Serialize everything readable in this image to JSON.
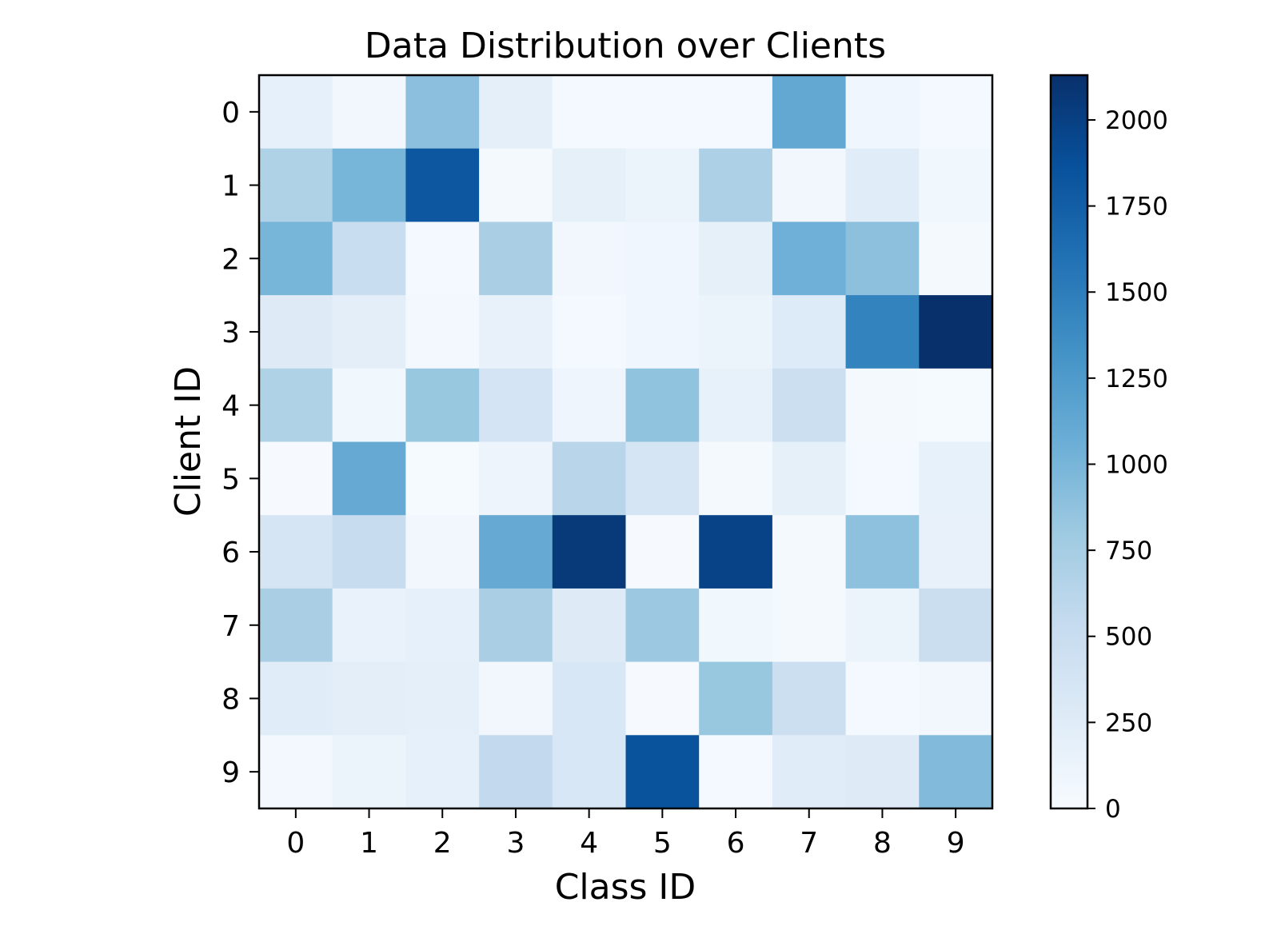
{
  "chart_data": {
    "type": "heatmap",
    "title": "Data Distribution over Clients",
    "xlabel": "Class ID",
    "ylabel": "Client ID",
    "x_categories": [
      "0",
      "1",
      "2",
      "3",
      "4",
      "5",
      "6",
      "7",
      "8",
      "9"
    ],
    "y_categories": [
      "0",
      "1",
      "2",
      "3",
      "4",
      "5",
      "6",
      "7",
      "8",
      "9"
    ],
    "values": [
      [
        180,
        60,
        900,
        200,
        40,
        40,
        40,
        1120,
        80,
        40
      ],
      [
        680,
        1000,
        1810,
        30,
        190,
        120,
        700,
        60,
        240,
        70
      ],
      [
        1000,
        500,
        40,
        720,
        60,
        80,
        190,
        1050,
        890,
        30
      ],
      [
        270,
        210,
        50,
        160,
        40,
        80,
        130,
        280,
        1450,
        2130
      ],
      [
        680,
        70,
        830,
        380,
        100,
        870,
        170,
        470,
        30,
        20
      ],
      [
        10,
        1100,
        20,
        110,
        620,
        360,
        30,
        190,
        40,
        170
      ],
      [
        360,
        510,
        60,
        1100,
        2050,
        10,
        1980,
        30,
        880,
        160
      ],
      [
        720,
        150,
        180,
        720,
        270,
        810,
        70,
        30,
        120,
        490
      ],
      [
        250,
        210,
        200,
        60,
        330,
        10,
        830,
        470,
        40,
        60
      ],
      [
        50,
        120,
        180,
        550,
        330,
        1850,
        40,
        250,
        270,
        950
      ]
    ],
    "colorbar": {
      "min": 0,
      "max": 2130,
      "ticks": [
        0,
        250,
        500,
        750,
        1000,
        1250,
        1500,
        1750,
        2000
      ],
      "tick_labels": [
        "0",
        "250",
        "500",
        "750",
        "1000",
        "1250",
        "1500",
        "1750",
        "2000"
      ]
    },
    "colormap": "Blues",
    "colormap_stops": [
      "#f7fbff",
      "#deebf7",
      "#c6dbef",
      "#9ecae1",
      "#6baed6",
      "#4292c6",
      "#2171b5",
      "#08519c",
      "#08306b"
    ]
  }
}
